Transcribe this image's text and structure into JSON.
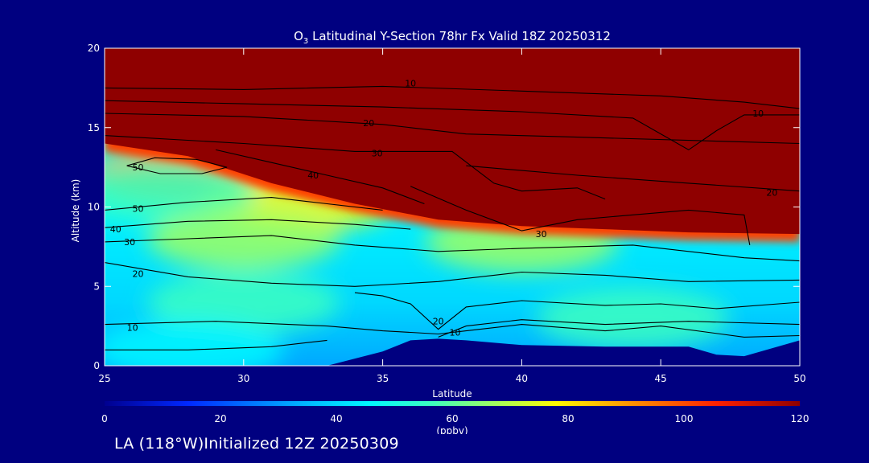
{
  "colors": {
    "background": "#000080",
    "text": "#ffffff",
    "contour": "#000000",
    "colormap": [
      "#00008f",
      "#0028ff",
      "#00b0ff",
      "#00f8ff",
      "#3cffc0",
      "#a0ff60",
      "#fff800",
      "#ff9000",
      "#ff2000",
      "#8f0000"
    ]
  },
  "chart_data": {
    "type": "heatmap",
    "title_prefix": "O",
    "title_subscript": "3",
    "title_rest": " Latitudinal Y-Section 78hr  Fx Valid 18Z 20250312",
    "xlabel": "Latitude",
    "ylabel": "Altitude (km)",
    "xlim": [
      25,
      50
    ],
    "ylim": [
      0,
      20
    ],
    "x_ticks": [
      25,
      30,
      35,
      40,
      45,
      50
    ],
    "y_ticks": [
      0,
      5,
      10,
      15,
      20
    ],
    "colorbar": {
      "range": [
        0,
        120
      ],
      "ticks": [
        0,
        20,
        40,
        60,
        80,
        100,
        120
      ],
      "unit_label": "(ppbv)"
    },
    "tropopause_km": [
      [
        25,
        14.0
      ],
      [
        28,
        13.2
      ],
      [
        31,
        11.5
      ],
      [
        34,
        10.2
      ],
      [
        37,
        9.2
      ],
      [
        40,
        8.8
      ],
      [
        43,
        8.6
      ],
      [
        46,
        8.4
      ],
      [
        50,
        8.3
      ]
    ],
    "terrain_km": [
      [
        33,
        0.0
      ],
      [
        35,
        0.9
      ],
      [
        36,
        1.6
      ],
      [
        37,
        1.7
      ],
      [
        38,
        1.6
      ],
      [
        40,
        1.3
      ],
      [
        43,
        1.2
      ],
      [
        46,
        1.2
      ],
      [
        47,
        0.7
      ],
      [
        48,
        0.6
      ],
      [
        50,
        1.6
      ]
    ],
    "contours": [
      {
        "label": "10",
        "label_at": [
          36,
          17.8
        ],
        "points": [
          [
            25,
            17.5
          ],
          [
            30,
            17.4
          ],
          [
            35,
            17.6
          ],
          [
            40,
            17.3
          ],
          [
            45,
            17.0
          ],
          [
            48,
            16.6
          ],
          [
            50,
            16.2
          ]
        ]
      },
      {
        "label": "10",
        "label_at": [
          48.5,
          15.9
        ],
        "points": [
          [
            25,
            16.7
          ],
          [
            30,
            16.5
          ],
          [
            35,
            16.3
          ],
          [
            40,
            16.0
          ],
          [
            44,
            15.6
          ],
          [
            46,
            13.6
          ],
          [
            47,
            14.8
          ],
          [
            48,
            15.8
          ],
          [
            50,
            15.8
          ]
        ]
      },
      {
        "label": "20",
        "label_at": [
          34.5,
          15.3
        ],
        "points": [
          [
            25,
            15.9
          ],
          [
            30,
            15.7
          ],
          [
            35,
            15.2
          ],
          [
            38,
            14.6
          ],
          [
            42,
            14.4
          ],
          [
            46,
            14.2
          ],
          [
            50,
            14.0
          ]
        ]
      },
      {
        "label": "20",
        "label_at": [
          49,
          10.9
        ],
        "points": [
          [
            38,
            12.6
          ],
          [
            42,
            12.0
          ],
          [
            46,
            11.5
          ],
          [
            50,
            11.0
          ]
        ]
      },
      {
        "label": "30",
        "label_at": [
          34.8,
          13.4
        ],
        "points": [
          [
            25,
            14.5
          ],
          [
            30,
            14.0
          ],
          [
            34,
            13.5
          ],
          [
            37.5,
            13.5
          ],
          [
            39,
            11.5
          ],
          [
            40,
            11.0
          ],
          [
            42,
            11.2
          ],
          [
            43,
            10.5
          ]
        ]
      },
      {
        "label": "30",
        "label_at": [
          40.7,
          8.3
        ],
        "points": [
          [
            36,
            11.3
          ],
          [
            38,
            9.8
          ],
          [
            40,
            8.5
          ],
          [
            42,
            9.2
          ],
          [
            46,
            9.8
          ],
          [
            48,
            9.5
          ],
          [
            48.2,
            7.6
          ]
        ]
      },
      {
        "label": "40",
        "label_at": [
          32.5,
          12.0
        ],
        "points": [
          [
            29,
            13.6
          ],
          [
            31,
            12.8
          ],
          [
            33,
            12.0
          ],
          [
            35,
            11.2
          ],
          [
            36.5,
            10.2
          ]
        ]
      },
      {
        "label": "50",
        "label_at": [
          26.2,
          12.5
        ],
        "points": [
          [
            25.8,
            12.6
          ],
          [
            27,
            12.1
          ],
          [
            28.5,
            12.1
          ],
          [
            29.4,
            12.5
          ],
          [
            28.3,
            13.0
          ],
          [
            26.8,
            13.1
          ],
          [
            25.8,
            12.6
          ]
        ]
      },
      {
        "label": "50",
        "label_at": [
          26.2,
          9.9
        ],
        "points": [
          [
            25,
            9.8
          ],
          [
            28,
            10.3
          ],
          [
            31,
            10.6
          ],
          [
            33,
            10.2
          ],
          [
            35,
            9.8
          ]
        ]
      },
      {
        "label": "40",
        "label_at": [
          25.4,
          8.6
        ],
        "points": [
          [
            25,
            8.7
          ],
          [
            28,
            9.1
          ],
          [
            31,
            9.2
          ],
          [
            34,
            8.9
          ],
          [
            36,
            8.6
          ]
        ]
      },
      {
        "label": "30",
        "label_at": [
          25.9,
          7.8
        ],
        "points": [
          [
            25,
            7.8
          ],
          [
            28,
            8.0
          ],
          [
            31,
            8.2
          ],
          [
            34,
            7.6
          ],
          [
            37,
            7.2
          ],
          [
            40,
            7.4
          ],
          [
            44,
            7.6
          ],
          [
            48,
            6.8
          ],
          [
            50,
            6.6
          ]
        ]
      },
      {
        "label": "20",
        "label_at": [
          26.2,
          5.8
        ],
        "points": [
          [
            25,
            6.5
          ],
          [
            28,
            5.6
          ],
          [
            31,
            5.2
          ],
          [
            34,
            5.0
          ],
          [
            37,
            5.3
          ],
          [
            40,
            5.9
          ],
          [
            43,
            5.7
          ],
          [
            46,
            5.3
          ],
          [
            50,
            5.4
          ]
        ]
      },
      {
        "label": "20",
        "label_at": [
          37.0,
          2.8
        ],
        "points": [
          [
            34,
            4.6
          ],
          [
            35,
            4.4
          ],
          [
            36,
            3.9
          ],
          [
            37,
            2.3
          ],
          [
            38,
            3.7
          ],
          [
            40,
            4.1
          ],
          [
            43,
            3.8
          ],
          [
            45,
            3.9
          ],
          [
            47,
            3.6
          ],
          [
            50,
            4.0
          ]
        ]
      },
      {
        "label": "10",
        "label_at": [
          26.0,
          2.4
        ],
        "points": [
          [
            25,
            2.6
          ],
          [
            29,
            2.8
          ],
          [
            33,
            2.5
          ],
          [
            35,
            2.2
          ],
          [
            36,
            2.1
          ],
          [
            37,
            2.0
          ],
          [
            38,
            2.2
          ],
          [
            40,
            2.6
          ],
          [
            43,
            2.2
          ],
          [
            45,
            2.5
          ],
          [
            48,
            1.8
          ],
          [
            50,
            1.9
          ]
        ]
      },
      {
        "label": "10",
        "label_at": [
          37.6,
          2.1
        ],
        "points": [
          [
            37,
            1.8
          ],
          [
            38,
            2.5
          ],
          [
            40,
            2.9
          ],
          [
            43,
            2.6
          ],
          [
            46,
            2.8
          ],
          [
            50,
            2.6
          ]
        ]
      },
      {
        "label": "",
        "label_at": [
          27,
          1.0
        ],
        "points": [
          [
            25,
            1.0
          ],
          [
            28,
            1.0
          ],
          [
            31,
            1.2
          ],
          [
            33,
            1.6
          ]
        ]
      }
    ],
    "field_hotspots": [
      {
        "lat": 28,
        "alt": 12.2,
        "ppbv": 88
      },
      {
        "lat": 32,
        "alt": 10.4,
        "ppbv": 78
      },
      {
        "lat": 27,
        "alt": 11.0,
        "ppbv": 48
      },
      {
        "lat": 30,
        "alt": 8.0,
        "ppbv": 68
      },
      {
        "lat": 40,
        "alt": 7.8,
        "ppbv": 64
      },
      {
        "lat": 30,
        "alt": 4.0,
        "ppbv": 58
      },
      {
        "lat": 44,
        "alt": 3.0,
        "ppbv": 48
      },
      {
        "lat": 28,
        "alt": 1.0,
        "ppbv": 44
      }
    ]
  },
  "footer": {
    "text": "LA (118°W)Initialized 12Z 20250309"
  }
}
